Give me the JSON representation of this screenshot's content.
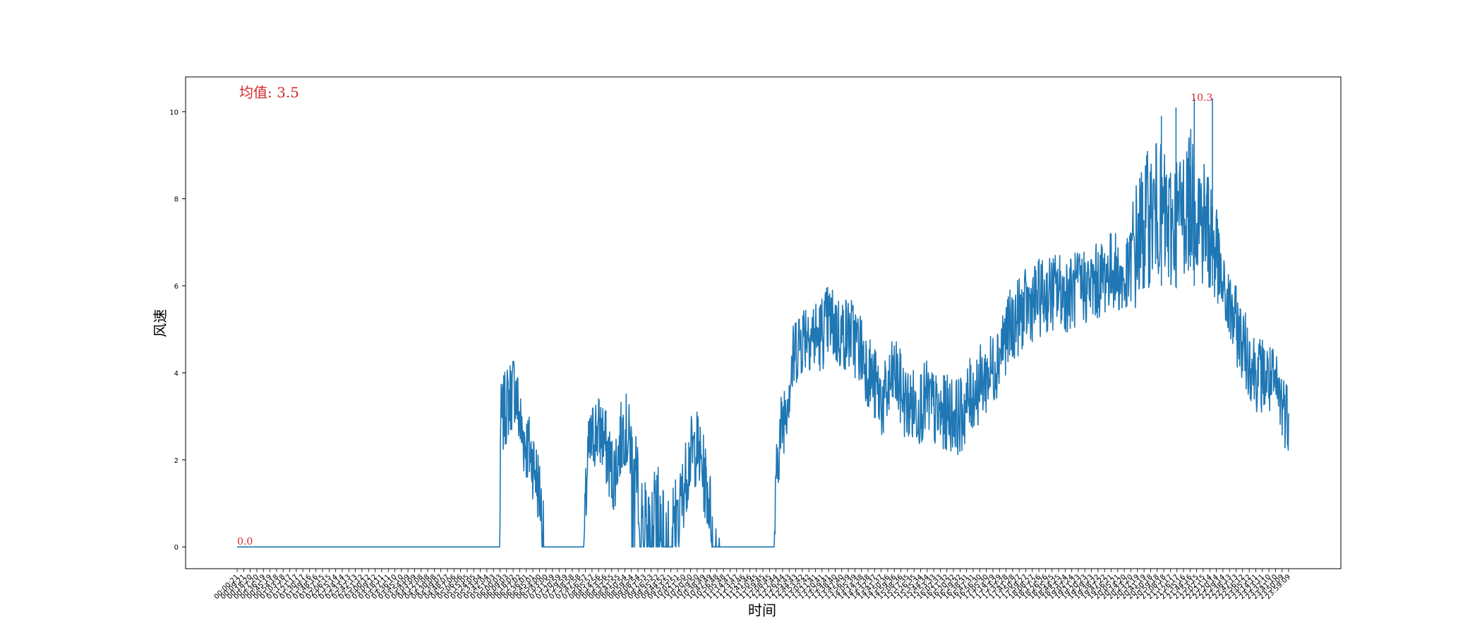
{
  "chart_data": {
    "type": "line",
    "xlabel": "时间",
    "ylabel": "风速",
    "ylim": [
      -0.5,
      10.8
    ],
    "yticks": [
      0,
      2,
      4,
      6,
      8,
      10
    ],
    "grid": false,
    "series_color": "#1f77b4",
    "annotation_color": "#d62728",
    "annotations": {
      "mean_text": "均值: 3.5",
      "max_text": "10.3",
      "min_text": "0.0",
      "max_value": 10.3,
      "min_value": 0.0
    },
    "x_first_label": "00:00:21",
    "x_last_label": "23:59:09",
    "x_tick_count": 161,
    "x_range_seconds": [
      21,
      86349
    ],
    "series": [
      {
        "control_points": [
          [
            "00:00:21",
            0.0
          ],
          [
            "06:00:00",
            0.0
          ],
          [
            "06:00:30",
            2.8
          ],
          [
            "06:10:00",
            3.3
          ],
          [
            "06:20:00",
            3.7
          ],
          [
            "06:30:00",
            2.6
          ],
          [
            "06:45:00",
            2.0
          ],
          [
            "06:55:00",
            1.2
          ],
          [
            "07:00:00",
            0.0
          ],
          [
            "07:10:00",
            0.8
          ],
          [
            "07:12:00",
            0.0
          ],
          [
            "07:55:00",
            0.0
          ],
          [
            "08:00:00",
            2.0
          ],
          [
            "08:10:00",
            2.7
          ],
          [
            "08:20:00",
            2.6
          ],
          [
            "08:35:00",
            1.6
          ],
          [
            "08:50:00",
            2.8
          ],
          [
            "09:00:00",
            2.2
          ],
          [
            "09:10:00",
            1.3
          ],
          [
            "09:20:00",
            0.5
          ],
          [
            "09:35:00",
            1.0
          ],
          [
            "09:50:00",
            0.4
          ],
          [
            "10:05:00",
            0.8
          ],
          [
            "10:20:00",
            2.1
          ],
          [
            "10:30:00",
            2.3
          ],
          [
            "10:45:00",
            1.2
          ],
          [
            "10:55:00",
            0.0
          ],
          [
            "11:00:00",
            0.0
          ],
          [
            "11:20:00",
            0.5
          ],
          [
            "11:40:00",
            0.4
          ],
          [
            "12:00:00",
            0.3
          ],
          [
            "12:12:00",
            0.6
          ],
          [
            "12:15:00",
            0.0
          ],
          [
            "12:20:00",
            2.2
          ],
          [
            "12:30:00",
            3.2
          ],
          [
            "12:45:00",
            4.6
          ],
          [
            "13:00:00",
            5.0
          ],
          [
            "13:15:00",
            4.8
          ],
          [
            "13:30:00",
            5.2
          ],
          [
            "13:45:00",
            4.9
          ],
          [
            "14:00:00",
            4.9
          ],
          [
            "14:15:00",
            4.5
          ],
          [
            "14:30:00",
            3.8
          ],
          [
            "14:45:00",
            3.3
          ],
          [
            "15:00:00",
            4.0
          ],
          [
            "15:15:00",
            3.3
          ],
          [
            "15:30:00",
            3.2
          ],
          [
            "15:45:00",
            3.4
          ],
          [
            "16:00:00",
            3.0
          ],
          [
            "16:15:00",
            3.1
          ],
          [
            "16:30:00",
            3.0
          ],
          [
            "16:45:00",
            3.5
          ],
          [
            "17:00:00",
            3.8
          ],
          [
            "17:15:00",
            4.1
          ],
          [
            "17:30:00",
            4.8
          ],
          [
            "17:45:00",
            5.2
          ],
          [
            "18:00:00",
            5.5
          ],
          [
            "18:15:00",
            5.7
          ],
          [
            "18:30:00",
            5.8
          ],
          [
            "18:45:00",
            5.9
          ],
          [
            "19:00:00",
            5.8
          ],
          [
            "19:15:00",
            6.0
          ],
          [
            "19:30:00",
            6.0
          ],
          [
            "19:45:00",
            6.2
          ],
          [
            "20:00:00",
            6.4
          ],
          [
            "20:15:00",
            6.0
          ],
          [
            "20:30:00",
            6.9
          ],
          [
            "20:45:00",
            7.5
          ],
          [
            "21:00:00",
            7.8
          ],
          [
            "21:15:00",
            7.3
          ],
          [
            "21:30:00",
            7.6
          ],
          [
            "21:45:00",
            8.0
          ],
          [
            "22:00:00",
            7.6
          ],
          [
            "22:15:00",
            7.1
          ],
          [
            "22:30:00",
            5.8
          ],
          [
            "22:45:00",
            5.2
          ],
          [
            "23:00:00",
            4.5
          ],
          [
            "23:15:00",
            4.0
          ],
          [
            "23:30:00",
            3.9
          ],
          [
            "23:45:00",
            3.5
          ],
          [
            "23:59:09",
            3.0
          ]
        ]
      }
    ]
  }
}
